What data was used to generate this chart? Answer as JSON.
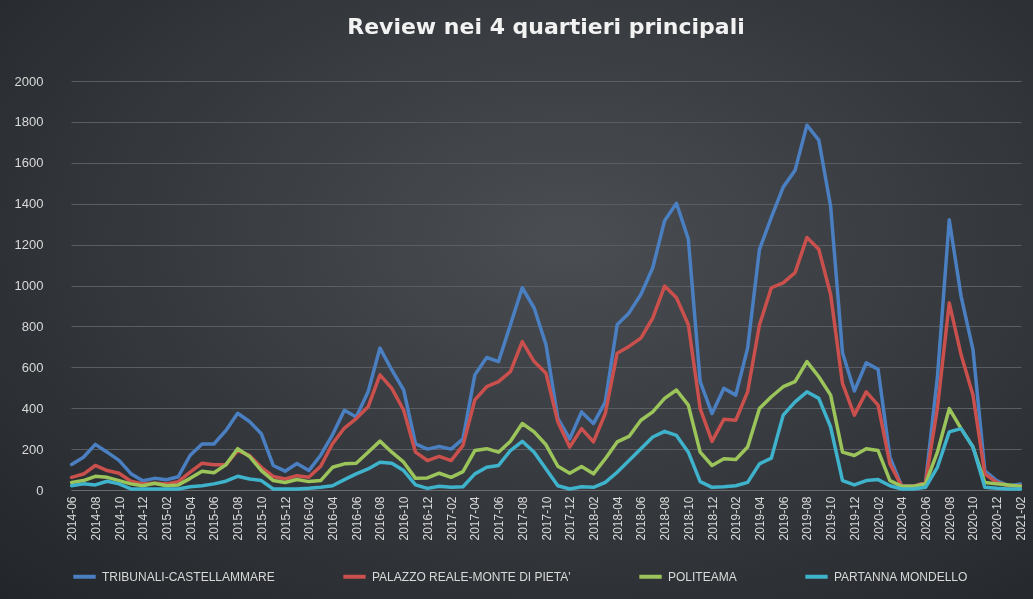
{
  "chart_data": {
    "type": "line",
    "title": "Review nei 4 quartieri principali",
    "categories": [
      "2014-06",
      null,
      "2014-08",
      null,
      "2014-10",
      null,
      "2014-12",
      null,
      "2015-02",
      null,
      "2015-04",
      null,
      "2015-06",
      null,
      "2015-08",
      null,
      "2015-10",
      null,
      "2015-12",
      null,
      "2016-02",
      null,
      "2016-04",
      null,
      "2016-06",
      null,
      "2016-08",
      null,
      "2016-10",
      null,
      "2016-12",
      null,
      "2017-02",
      null,
      "2017-04",
      null,
      "2017-06",
      null,
      "2017-08",
      null,
      "2017-10",
      null,
      "2017-12",
      null,
      "2018-02",
      null,
      "2018-04",
      null,
      "2018-06",
      null,
      "2018-08",
      null,
      "2018-10",
      null,
      "2018-12",
      null,
      "2019-02",
      null,
      "2019-04",
      null,
      "2019-06",
      null,
      "2019-08",
      null,
      "2019-10",
      null,
      "2019-12",
      null,
      "2020-02",
      null,
      "2020-04",
      null,
      "2020-06",
      null,
      "2020-08",
      null,
      "2020-10",
      null,
      "2020-12",
      null,
      "2021-02"
    ],
    "series": [
      {
        "name": "TRIBUNALI-CASTELLAMMARE",
        "color": "#4a7fc1",
        "values": [
          125,
          160,
          223,
          185,
          145,
          80,
          45,
          57,
          50,
          65,
          170,
          225,
          225,
          290,
          375,
          335,
          275,
          120,
          92,
          130,
          95,
          170,
          270,
          390,
          357,
          480,
          694,
          587,
          489,
          226,
          200,
          213,
          200,
          250,
          563,
          648,
          628,
          808,
          989,
          890,
          710,
          350,
          250,
          382,
          325,
          431,
          808,
          866,
          956,
          1087,
          1317,
          1402,
          1227,
          530,
          374,
          497,
          464,
          694,
          1177,
          1333,
          1481,
          1563,
          1784,
          1711,
          1386,
          671,
          484,
          622,
          590,
          160,
          18,
          18,
          37,
          550,
          1321,
          947,
          687,
          94,
          46,
          21,
          29
        ]
      },
      {
        "name": "PALAZZO REALE-MONTE DI PIETA'",
        "color": "#c9504c",
        "values": [
          62,
          78,
          120,
          95,
          82,
          43,
          30,
          33,
          30,
          41,
          87,
          131,
          123,
          123,
          193,
          169,
          111,
          66,
          54,
          70,
          62,
          116,
          226,
          303,
          349,
          407,
          563,
          497,
          390,
          185,
          144,
          164,
          144,
          218,
          441,
          505,
          530,
          579,
          726,
          628,
          571,
          333,
          210,
          300,
          235,
          374,
          669,
          702,
          743,
          841,
          997,
          940,
          808,
          398,
          238,
          346,
          341,
          480,
          808,
          989,
          1013,
          1063,
          1235,
          1177,
          956,
          521,
          366,
          480,
          415,
          128,
          18,
          18,
          37,
          400,
          915,
          661,
          464,
          78,
          37,
          21,
          21
        ]
      },
      {
        "name": "POLITEAMA",
        "color": "#9bc45a",
        "values": [
          37,
          46,
          67,
          62,
          46,
          30,
          21,
          33,
          21,
          25,
          57,
          92,
          84,
          123,
          202,
          164,
          95,
          46,
          37,
          51,
          41,
          46,
          111,
          128,
          131,
          185,
          239,
          185,
          136,
          57,
          59,
          82,
          62,
          90,
          193,
          202,
          185,
          238,
          325,
          284,
          221,
          116,
          82,
          115,
          79,
          153,
          235,
          262,
          341,
          382,
          448,
          489,
          415,
          185,
          120,
          153,
          149,
          210,
          398,
          456,
          505,
          530,
          628,
          554,
          464,
          185,
          169,
          202,
          193,
          46,
          18,
          18,
          30,
          185,
          398,
          300,
          210,
          37,
          30,
          25,
          18
        ]
      },
      {
        "name": "PARTANNA MONDELLO",
        "color": "#3fb2cc",
        "values": [
          21,
          30,
          25,
          43,
          30,
          5,
          5,
          5,
          5,
          5,
          16,
          21,
          30,
          43,
          67,
          54,
          46,
          5,
          5,
          5,
          8,
          13,
          21,
          51,
          79,
          103,
          136,
          131,
          95,
          25,
          8,
          18,
          13,
          16,
          79,
          111,
          120,
          193,
          238,
          185,
          103,
          21,
          5,
          16,
          13,
          37,
          87,
          144,
          202,
          259,
          287,
          267,
          185,
          41,
          13,
          16,
          21,
          37,
          128,
          156,
          366,
          431,
          480,
          448,
          308,
          46,
          25,
          46,
          51,
          21,
          5,
          5,
          13,
          111,
          284,
          300,
          210,
          13,
          8,
          5,
          5
        ]
      }
    ],
    "ylim": [
      0,
      2000
    ],
    "yticks": [
      0,
      200,
      400,
      600,
      800,
      1000,
      1200,
      1400,
      1600,
      1800,
      2000
    ],
    "grid": "y",
    "legend": "bottom"
  }
}
